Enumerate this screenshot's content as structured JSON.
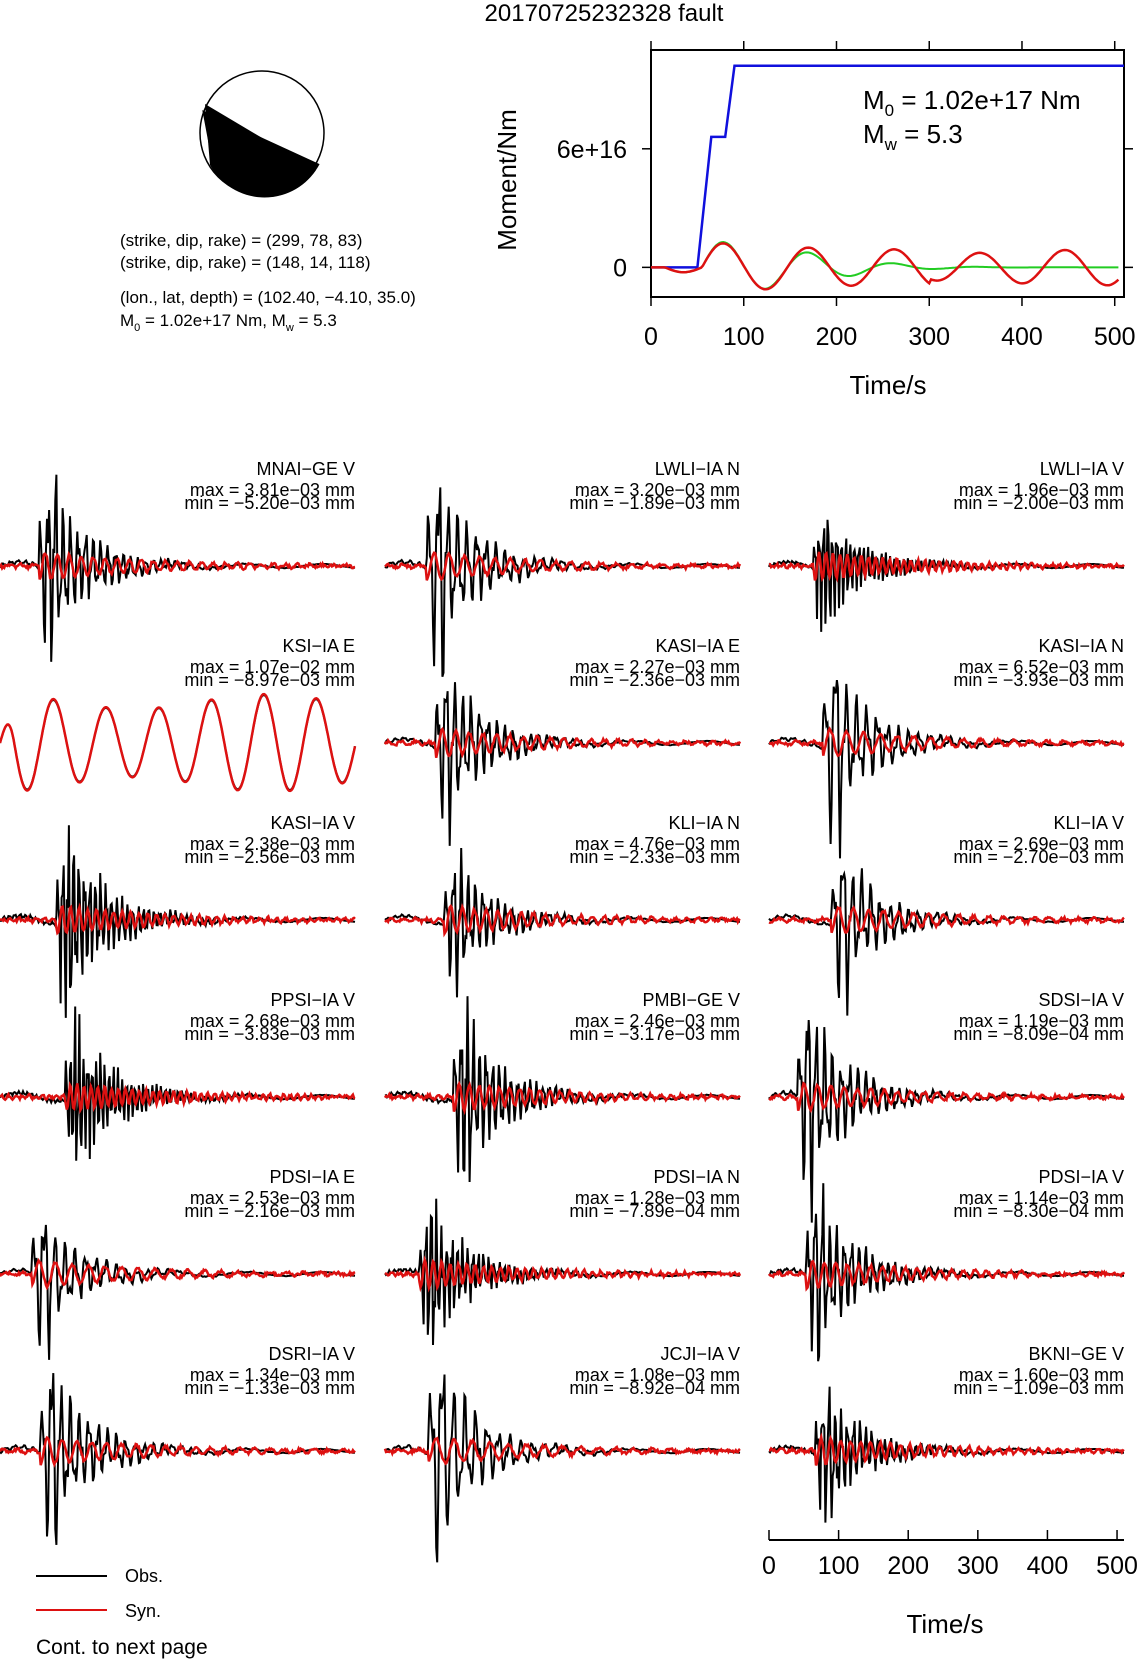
{
  "title": "20170725232328 fault",
  "beachball": {
    "type": "focal-mechanism"
  },
  "source_info": {
    "line1": "(strike, dip, rake) = (299, 78, 83)",
    "line2": "(strike, dip, rake) = (148, 14, 118)",
    "line3": "(lon., lat, depth) = (102.40, −4.10, 35.0)",
    "line4_m0": "1.02e+17",
    "line4_mw": "5.3"
  },
  "moment_plot": {
    "ylabel": "Moment/Nm",
    "xlabel": "Time/s",
    "m0_value": "1.02e+17 Nm",
    "mw_value": "5.3",
    "xlim": [
      0,
      510
    ],
    "ylim": [
      -1.5e+16,
      1.1e+17
    ],
    "xticks": [
      "0",
      "100",
      "200",
      "300",
      "400",
      "500"
    ],
    "yticks": [
      "0",
      "6e+16"
    ],
    "colors": {
      "cumulative": "#1010dd",
      "stf_green": "#22cc22",
      "stf_red": "#dd1111"
    }
  },
  "chart_data": [
    {
      "type": "line",
      "chart": "moment",
      "ylabel": "Moment/Nm",
      "xlabel": "Time/s",
      "xlim": [
        0,
        510
      ],
      "series": [
        {
          "x": [
            0,
            50,
            65,
            75,
            80,
            90,
            510
          ],
          "y": [
            0,
            0,
            6.6e+16,
            6.6e+16,
            6.6e+16,
            1.02e+17,
            1.02e+17
          ]
        }
      ]
    },
    {
      "type": "line",
      "chart": "waveforms",
      "xlabel": "Time/s",
      "xlim": [
        0,
        510
      ],
      "xticks": [
        0,
        100,
        200,
        300,
        400,
        500
      ],
      "legend": [
        "Obs.",
        "Syn."
      ]
    }
  ],
  "stations": [
    {
      "name": "MNAI−GE V",
      "max": "max = 3.81e−03 mm",
      "min": "min = −5.20e−03 mm"
    },
    {
      "name": "LWLI−IA N",
      "max": "max = 3.20e−03 mm",
      "min": "min = −1.89e−03 mm"
    },
    {
      "name": "LWLI−IA V",
      "max": "max = 1.96e−03 mm",
      "min": "min = −2.00e−03 mm"
    },
    {
      "name": "KSI−IA E",
      "max": "max = 1.07e−02 mm",
      "min": "min = −8.97e−03 mm"
    },
    {
      "name": "KASI−IA E",
      "max": "max = 2.27e−03 mm",
      "min": "min = −2.36e−03 mm"
    },
    {
      "name": "KASI−IA N",
      "max": "max = 6.52e−03 mm",
      "min": "min = −3.93e−03 mm"
    },
    {
      "name": "KASI−IA V",
      "max": "max = 2.38e−03 mm",
      "min": "min = −2.56e−03 mm"
    },
    {
      "name": "KLI−IA N",
      "max": "max = 4.76e−03 mm",
      "min": "min = −2.33e−03 mm"
    },
    {
      "name": "KLI−IA V",
      "max": "max = 2.69e−03 mm",
      "min": "min = −2.70e−03 mm"
    },
    {
      "name": "PPSI−IA V",
      "max": "max = 2.68e−03 mm",
      "min": "min = −3.83e−03 mm"
    },
    {
      "name": "PMBI−GE V",
      "max": "max = 2.46e−03 mm",
      "min": "min = −3.17e−03 mm"
    },
    {
      "name": "SDSI−IA V",
      "max": "max = 1.19e−03 mm",
      "min": "min = −8.09e−04 mm"
    },
    {
      "name": "PDSI−IA E",
      "max": "max = 2.53e−03 mm",
      "min": "min = −2.16e−03 mm"
    },
    {
      "name": "PDSI−IA N",
      "max": "max = 1.28e−03 mm",
      "min": "min = −7.89e−04 mm"
    },
    {
      "name": "PDSI−IA V",
      "max": "max = 1.14e−03 mm",
      "min": "min = −8.30e−04 mm"
    },
    {
      "name": "DSRI−IA V",
      "max": "max = 1.34e−03 mm",
      "min": "min = −1.33e−03 mm"
    },
    {
      "name": "JCJI−IA V",
      "max": "max = 1.08e−03 mm",
      "min": "min = −8.92e−04 mm"
    },
    {
      "name": "BKNI−GE V",
      "max": "max = 1.60e−03 mm",
      "min": "min = −1.09e−03 mm"
    }
  ],
  "bottom_axis": {
    "xlabel": "Time/s",
    "ticks": [
      "0",
      "100",
      "200",
      "300",
      "400",
      "500"
    ]
  },
  "legend": {
    "obs_label": "Obs.",
    "syn_label": "Syn.",
    "obs_color": "#000000",
    "syn_color": "#dd1111"
  },
  "footer": {
    "note": "Cont. to next page"
  }
}
